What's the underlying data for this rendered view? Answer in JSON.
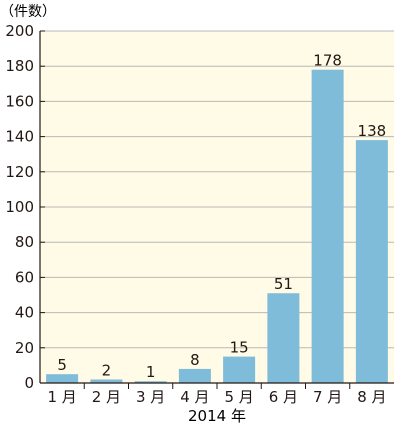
{
  "chart_data": {
    "type": "bar",
    "unit_label": "（件数）",
    "xlabel": "2014 年",
    "categories": [
      "1 月",
      "2 月",
      "3 月",
      "4 月",
      "5 月",
      "6 月",
      "7 月",
      "8 月"
    ],
    "values": [
      5,
      2,
      1,
      8,
      15,
      51,
      178,
      138
    ],
    "y_ticks": [
      0,
      20,
      40,
      60,
      80,
      100,
      120,
      140,
      160,
      180,
      200
    ],
    "ylim": [
      0,
      200
    ],
    "grid": true,
    "colors": {
      "bar": "#7fbcd9",
      "plot_background": "#fffbe6",
      "grid": "#b9b9b9",
      "axis": "#231815"
    }
  }
}
